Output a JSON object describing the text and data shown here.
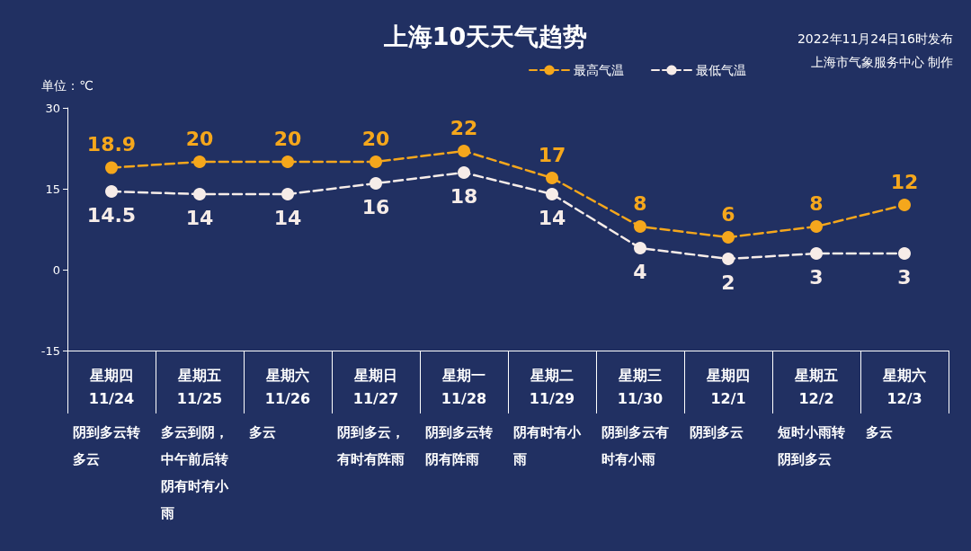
{
  "chart_data": {
    "type": "line",
    "title": "上海10天天气趋势",
    "ylabel": "单位：℃",
    "categories": [
      "星期四\n11/24",
      "星期五\n11/25",
      "星期六\n11/26",
      "星期日\n11/27",
      "星期一\n11/28",
      "星期二\n11/29",
      "星期三\n11/30",
      "星期四\n12/1",
      "星期五\n12/2",
      "星期六\n12/3"
    ],
    "series": [
      {
        "name": "最高气温",
        "color": "#f5a71c",
        "values": [
          18.9,
          20,
          20,
          20,
          22,
          17,
          8,
          6,
          8,
          12
        ]
      },
      {
        "name": "最低气温",
        "color": "#f6ece8",
        "values": [
          14.5,
          14,
          14,
          16,
          18,
          14,
          4,
          2,
          3,
          3
        ]
      }
    ],
    "ylim": [
      -15,
      30
    ],
    "yticks": [
      -15,
      0,
      15,
      30
    ],
    "grid": false,
    "legend": "top right",
    "marker": "circle",
    "line_style": "dashed",
    "data_labels": true,
    "annotations": [
      "2022年11月24日16时发布",
      "上海市气象服务中心 制作",
      "阴到多云转多云",
      "多云到阴，中午前后转阴有时有小雨",
      "多云",
      "阴到多云，有时有阵雨",
      "阴到多云转阴有阵雨",
      "阴有时有小雨",
      "阴到多云有时有小雨",
      "阴到多云",
      "短时小雨转阴到多云",
      "多云"
    ]
  }
}
